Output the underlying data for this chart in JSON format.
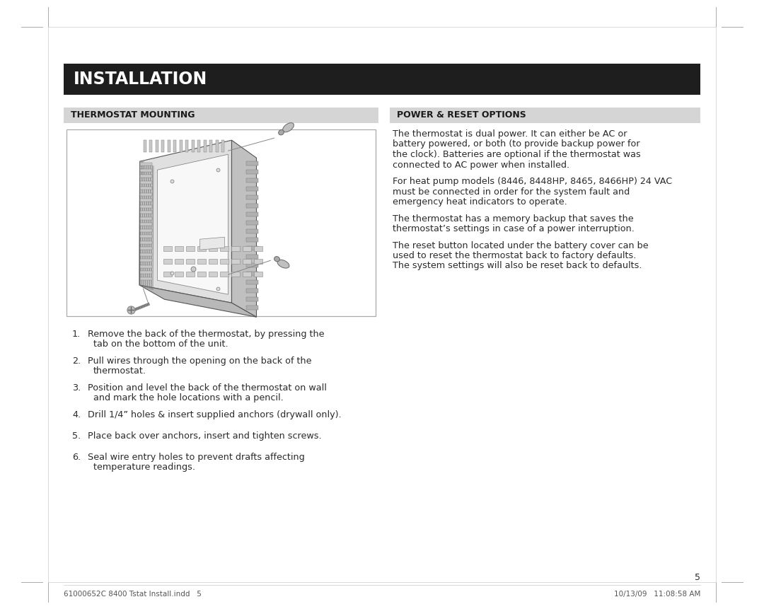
{
  "bg_color": "#ffffff",
  "title_bar_color": "#1e1e1e",
  "title_text": "INSTALLATION",
  "title_text_color": "#ffffff",
  "title_font_size": 17,
  "section_bar_color": "#d5d5d5",
  "section_left_title": "THERMOSTAT MOUNTING",
  "section_right_title": "POWER & RESET OPTIONS",
  "section_title_color": "#1a1a1a",
  "section_title_font_size": 9,
  "body_text_color": "#2a2a2a",
  "body_font_size": 9.2,
  "left_instructions": [
    [
      "1.",
      "Remove the back of the thermostat, by pressing the",
      "tab on the bottom of the unit."
    ],
    [
      "2.",
      "Pull wires through the opening on the back of the",
      "thermostat."
    ],
    [
      "3.",
      "Position and level the back of the thermostat on wall",
      "and mark the hole locations with a pencil."
    ],
    [
      "4.",
      "Drill 1/4” holes & insert supplied anchors (drywall only).",
      ""
    ],
    [
      "5.",
      "Place back over anchors, insert and tighten screws.",
      ""
    ],
    [
      "6.",
      "Seal wire entry holes to prevent drafts affecting",
      "temperature readings."
    ]
  ],
  "right_paragraphs": [
    "The thermostat is dual power. It can either be AC or battery powered, or both (to provide backup power for the clock). Batteries are optional if the thermostat was connected to AC power when installed.",
    "For heat pump models (8446, 8448HP, 8465, 8466HP) 24 VAC must be connected in order for the system fault and emergency heat indicators to operate.",
    "The thermostat has a memory backup that saves the thermostat’s settings in case of a power interruption.",
    "The reset button located under the battery cover can be used to reset the thermostat back to factory defaults. The system settings will also be reset back to defaults."
  ],
  "footer_left": "61000652C 8400 Tstat Install.indd   5",
  "footer_right": "10/13/09   11:08:58 AM",
  "footer_font_size": 7.5,
  "page_number": "5",
  "image_border_color": "#aaaaaa",
  "crop_mark_color": "#aaaaaa",
  "page_border_color": "#cccccc"
}
